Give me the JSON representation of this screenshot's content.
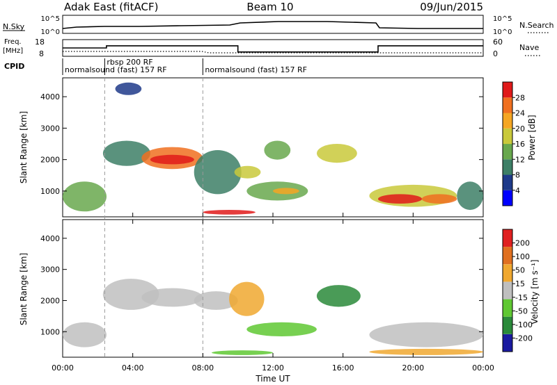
{
  "header": {
    "station": "Adak East (fitACF)",
    "beam": "Beam 10",
    "date": "09/Jun/2015"
  },
  "nsky_panel": {
    "left_label": "N.Sky",
    "right_label": "N.Search",
    "tick_hi": "10^5",
    "tick_lo": "10^0"
  },
  "freq_panel": {
    "left_label_1": "Freq.",
    "left_label_2": "[MHz]",
    "left_tick_hi": "18",
    "left_tick_lo": "8",
    "right_label": "Nave",
    "right_tick_hi": "60",
    "right_tick_lo": "0",
    "freq_mhz": [
      {
        "t": 0,
        "f": 13
      },
      {
        "t": 2.5,
        "f": 13
      },
      {
        "t": 2.5,
        "f": 14.3
      },
      {
        "t": 10,
        "f": 14.3
      },
      {
        "t": 10,
        "f": 10.6
      },
      {
        "t": 18,
        "f": 10.6
      },
      {
        "t": 18,
        "f": 14.3
      },
      {
        "t": 24,
        "f": 14.3
      }
    ]
  },
  "cpid": {
    "label": "CPID",
    "programs": [
      {
        "start": 0,
        "end": 2.4,
        "text": "normalsound (fast) 157 RF"
      },
      {
        "start": 2.4,
        "end": 8.0,
        "text": "rbsp 200 RF"
      },
      {
        "start": 8.0,
        "end": 24,
        "text": "normalsound (fast) 157 RF"
      }
    ]
  },
  "chart_data": [
    {
      "type": "heatmap",
      "ylabel": "Slant Range [km]",
      "xlabel": "Time UT",
      "xlim": [
        0,
        24
      ],
      "ylim": [
        180,
        4600
      ],
      "yticks": [
        "1000",
        "2000",
        "3000",
        "4000"
      ],
      "xticks": [
        "00:00",
        "04:00",
        "08:00",
        "12:00",
        "16:00",
        "20:00",
        "00:00"
      ],
      "colorbar_label": "Power [dB]",
      "colorbar_ticks": [
        "28",
        "24",
        "20",
        "16",
        "12",
        "8",
        "4"
      ],
      "colors": [
        "#0000ff",
        "#1e3a8a",
        "#3d7f66",
        "#68a84e",
        "#c9c93b",
        "#f5a623",
        "#f07020",
        "#e01a1a"
      ],
      "regions": [
        {
          "t0": 0.0,
          "t1": 2.5,
          "r0": 350,
          "r1": 1300,
          "level": 3
        },
        {
          "t0": 2.3,
          "t1": 5.0,
          "r0": 1800,
          "r1": 2600,
          "level": 2
        },
        {
          "t0": 4.5,
          "t1": 8.0,
          "r0": 1700,
          "r1": 2400,
          "level": 6
        },
        {
          "t0": 5.0,
          "t1": 7.5,
          "r0": 1850,
          "r1": 2150,
          "level": 7
        },
        {
          "t0": 7.5,
          "t1": 10.2,
          "r0": 900,
          "r1": 2300,
          "level": 2
        },
        {
          "t0": 8.0,
          "t1": 11.0,
          "r0": 250,
          "r1": 400,
          "level": 7
        },
        {
          "t0": 9.8,
          "t1": 11.3,
          "r0": 1400,
          "r1": 1800,
          "level": 4
        },
        {
          "t0": 10.5,
          "t1": 14.0,
          "r0": 700,
          "r1": 1300,
          "level": 3
        },
        {
          "t0": 12.0,
          "t1": 13.5,
          "r0": 900,
          "r1": 1100,
          "level": 5
        },
        {
          "t0": 14.5,
          "t1": 16.8,
          "r0": 1900,
          "r1": 2500,
          "level": 4
        },
        {
          "t0": 17.5,
          "t1": 22.5,
          "r0": 500,
          "r1": 1200,
          "level": 4
        },
        {
          "t0": 18.0,
          "t1": 20.5,
          "r0": 600,
          "r1": 900,
          "level": 7
        },
        {
          "t0": 20.5,
          "t1": 22.5,
          "r0": 600,
          "r1": 900,
          "level": 6
        },
        {
          "t0": 22.5,
          "t1": 24.0,
          "r0": 400,
          "r1": 1300,
          "level": 2
        },
        {
          "t0": 11.5,
          "t1": 13.0,
          "r0": 2000,
          "r1": 2600,
          "level": 3
        },
        {
          "t0": 3.0,
          "t1": 4.5,
          "r0": 4050,
          "r1": 4450,
          "level": 1
        }
      ]
    },
    {
      "type": "heatmap",
      "ylabel": "Slant Range [km]",
      "xlabel": "Time UT",
      "xlim": [
        0,
        24
      ],
      "ylim": [
        180,
        4600
      ],
      "yticks": [
        "1000",
        "2000",
        "3000",
        "4000"
      ],
      "xticks": [
        "00:00",
        "04:00",
        "08:00",
        "12:00",
        "16:00",
        "20:00",
        "00:00"
      ],
      "colorbar_label": "Velocity [m s⁻¹]",
      "colorbar_ticks": [
        "200",
        "100",
        "50",
        "15",
        "-15",
        "-50",
        "-100",
        "-200"
      ],
      "colors": [
        "#1a1aa0",
        "#2a8a3a",
        "#5fc832",
        "#bfbfbf",
        "#f0a830",
        "#e07020",
        "#e02020"
      ],
      "regions": [
        {
          "t0": 0.0,
          "t1": 2.5,
          "r0": 500,
          "r1": 1300,
          "level": 3
        },
        {
          "t0": 2.3,
          "t1": 5.5,
          "r0": 1700,
          "r1": 2700,
          "level": 3
        },
        {
          "t0": 4.5,
          "t1": 8.0,
          "r0": 1800,
          "r1": 2400,
          "level": 3
        },
        {
          "t0": 7.5,
          "t1": 10.0,
          "r0": 1700,
          "r1": 2300,
          "level": 3
        },
        {
          "t0": 9.5,
          "t1": 11.5,
          "r0": 1500,
          "r1": 2600,
          "level": 4
        },
        {
          "t0": 8.5,
          "t1": 12.0,
          "r0": 250,
          "r1": 400,
          "level": 2
        },
        {
          "t0": 10.5,
          "t1": 14.5,
          "r0": 850,
          "r1": 1300,
          "level": 2
        },
        {
          "t0": 14.5,
          "t1": 17.0,
          "r0": 1800,
          "r1": 2500,
          "level": 1
        },
        {
          "t0": 17.5,
          "t1": 24.0,
          "r0": 500,
          "r1": 1300,
          "level": 3
        },
        {
          "t0": 17.5,
          "t1": 24.0,
          "r0": 250,
          "r1": 450,
          "level": 4
        }
      ]
    }
  ]
}
